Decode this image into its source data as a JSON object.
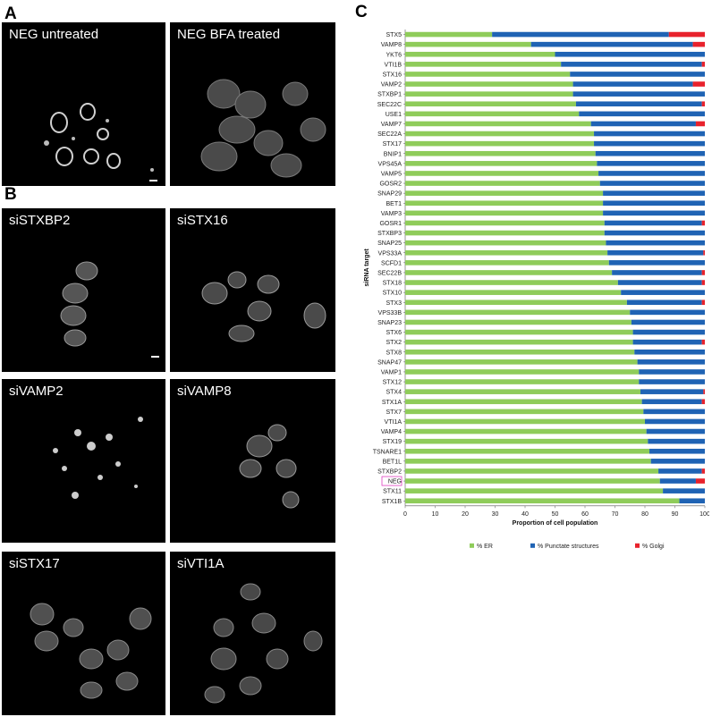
{
  "panels": {
    "A": {
      "label": "A",
      "images": [
        "NEG untreated",
        "NEG BFA treated"
      ]
    },
    "B": {
      "label": "B",
      "images": [
        "siSTXBP2",
        "siSTX16",
        "siVAMP2",
        "siVAMP8",
        "siSTX17",
        "siVTI1A"
      ]
    },
    "C": {
      "label": "C"
    }
  },
  "chart_data": {
    "type": "bar",
    "orientation": "horizontal",
    "stacked": true,
    "categories": [
      "STX5",
      "VAMP8",
      "YKT6",
      "VTI1B",
      "STX16",
      "VAMP2",
      "STXBP1",
      "SEC22C",
      "USE1",
      "VAMP7",
      "SEC22A",
      "STX17",
      "BNIP1",
      "VPS45A",
      "VAMP5",
      "GOSR2",
      "SNAP29",
      "BET1",
      "VAMP3",
      "GOSR1",
      "STXBP3",
      "SNAP25",
      "VPS33A",
      "SCFD1",
      "SEC22B",
      "STX18",
      "STX10",
      "STX3",
      "VPS33B",
      "SNAP23",
      "STX6",
      "STX2",
      "STX8",
      "SNAP47",
      "VAMP1",
      "STX12",
      "STX4",
      "STX1A",
      "STX7",
      "VTI1A",
      "VAMP4",
      "STX19",
      "TSNARE1",
      "BET1L",
      "STXBP2",
      "NEG",
      "STX11",
      "STX1B"
    ],
    "highlighted_category": "NEG",
    "series": [
      {
        "name": "% ER",
        "color": "#8fcc5a",
        "values": [
          29,
          42,
          50,
          52,
          55,
          56,
          56,
          57,
          58,
          62,
          63,
          63,
          63.5,
          64,
          64.5,
          65,
          66,
          66,
          66,
          66.5,
          66.5,
          67,
          67.5,
          68,
          69,
          71,
          72,
          74,
          75,
          75.5,
          76,
          76,
          76.5,
          77.5,
          78,
          78,
          78.5,
          79,
          79.5,
          80,
          80.5,
          81,
          81.5,
          82,
          84.5,
          85,
          86,
          91.5
        ]
      },
      {
        "name": "% Punctate structures",
        "color": "#1f63b4",
        "values": [
          59,
          54,
          50,
          47,
          45,
          40,
          44,
          42,
          42,
          35,
          37,
          37,
          36.5,
          36,
          35.5,
          35,
          34,
          34,
          34,
          32.5,
          33.5,
          33,
          32,
          32,
          30,
          28,
          28,
          25,
          25,
          24.5,
          24,
          23,
          23.5,
          22.5,
          22,
          22,
          21,
          20,
          20.5,
          20,
          19.5,
          19,
          18.5,
          18,
          14.5,
          12,
          14,
          8.5
        ]
      },
      {
        "name": "% Golgi",
        "color": "#e8222c",
        "values": [
          12,
          4,
          0,
          1,
          0,
          4,
          0,
          1,
          0,
          3,
          0,
          0,
          0,
          0,
          0,
          0,
          0,
          0,
          0,
          1,
          0,
          0,
          0.5,
          0,
          1,
          1,
          0,
          1,
          0,
          0,
          0,
          1,
          0,
          0,
          0,
          0,
          0.5,
          1,
          0,
          0,
          0,
          0,
          0,
          0,
          1,
          3,
          0,
          0
        ]
      }
    ],
    "xlabel": "Proportion of cell population",
    "ylabel": "siRNA target",
    "xlim": [
      0,
      100
    ],
    "xticks": [
      0,
      10,
      20,
      30,
      40,
      50,
      60,
      70,
      80,
      90,
      100
    ],
    "legend_position": "bottom"
  }
}
